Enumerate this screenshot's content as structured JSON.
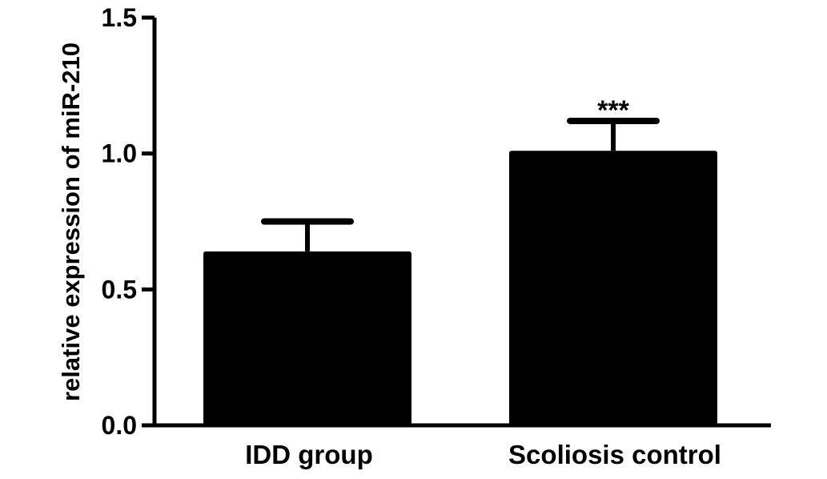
{
  "chart_data": {
    "type": "bar",
    "categories": [
      "IDD group",
      "Scoliosis control"
    ],
    "values": [
      0.64,
      1.01
    ],
    "error_upper": [
      0.75,
      1.12
    ],
    "annotations": [
      "",
      "***"
    ],
    "ylabel": "relative expression of miR-210",
    "xlabel": "",
    "title": "",
    "ylim": [
      0,
      1.5
    ],
    "yticks": [
      0.0,
      0.5,
      1.0,
      1.5
    ],
    "ytick_labels": [
      "0.0",
      "0.5",
      "1.0",
      "1.5"
    ],
    "grid": false,
    "bar_color": "#000000"
  }
}
